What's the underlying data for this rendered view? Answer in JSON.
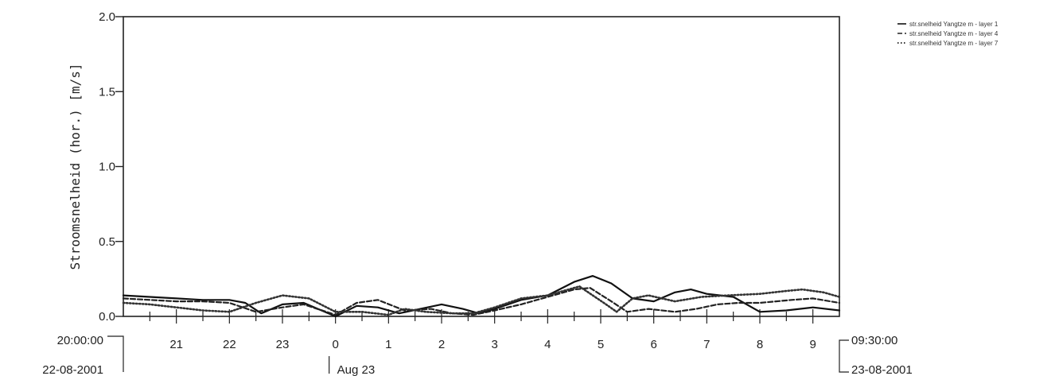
{
  "chart_data": {
    "type": "line",
    "ylabel": "Stroomsnelheid (hor.) [m/s]",
    "ylim": [
      0.0,
      2.0
    ],
    "y_ticks": [
      {
        "value": 0.0,
        "label": "0.0"
      },
      {
        "value": 0.5,
        "label": "0.5"
      },
      {
        "value": 1.0,
        "label": "1.0"
      },
      {
        "value": 1.5,
        "label": "1.5"
      },
      {
        "value": 2.0,
        "label": "2.0"
      }
    ],
    "xlim": [
      20.0,
      33.5
    ],
    "x_ticks": [
      {
        "value": 21,
        "label": "21"
      },
      {
        "value": 22,
        "label": "22"
      },
      {
        "value": 23,
        "label": "23"
      },
      {
        "value": 24,
        "label": "0"
      },
      {
        "value": 25,
        "label": "1"
      },
      {
        "value": 26,
        "label": "2"
      },
      {
        "value": 27,
        "label": "3"
      },
      {
        "value": 28,
        "label": "4"
      },
      {
        "value": 29,
        "label": "5"
      },
      {
        "value": 30,
        "label": "6"
      },
      {
        "value": 31,
        "label": "7"
      },
      {
        "value": 32,
        "label": "8"
      },
      {
        "value": 33,
        "label": "9"
      }
    ],
    "start_label_time": "20:00:00",
    "start_label_date": "22-08-2001",
    "end_label_time": "09:30:00",
    "end_label_date": "23-08-2001",
    "day_marker_label": "Aug 23",
    "legend_position": "top-right",
    "series": [
      {
        "name": "str.snelheid Yangtze m - layer 1",
        "style": "solid",
        "color": "#111111",
        "points": [
          [
            20.0,
            0.14
          ],
          [
            20.5,
            0.13
          ],
          [
            21.0,
            0.12
          ],
          [
            21.5,
            0.11
          ],
          [
            22.0,
            0.11
          ],
          [
            22.3,
            0.09
          ],
          [
            22.6,
            0.02
          ],
          [
            23.0,
            0.08
          ],
          [
            23.4,
            0.09
          ],
          [
            24.0,
            0.0
          ],
          [
            24.4,
            0.07
          ],
          [
            24.8,
            0.06
          ],
          [
            25.2,
            0.02
          ],
          [
            25.6,
            0.05
          ],
          [
            26.0,
            0.08
          ],
          [
            26.4,
            0.05
          ],
          [
            26.7,
            0.02
          ],
          [
            27.0,
            0.05
          ],
          [
            27.5,
            0.11
          ],
          [
            28.0,
            0.14
          ],
          [
            28.5,
            0.23
          ],
          [
            28.85,
            0.27
          ],
          [
            29.2,
            0.22
          ],
          [
            29.6,
            0.12
          ],
          [
            30.0,
            0.1
          ],
          [
            30.4,
            0.16
          ],
          [
            30.7,
            0.18
          ],
          [
            31.0,
            0.15
          ],
          [
            31.5,
            0.13
          ],
          [
            32.0,
            0.03
          ],
          [
            32.5,
            0.04
          ],
          [
            33.0,
            0.06
          ],
          [
            33.5,
            0.04
          ]
        ]
      },
      {
        "name": "str.snelheid Yangtze m - layer 4",
        "style": "dashed",
        "color": "#222222",
        "points": [
          [
            20.0,
            0.12
          ],
          [
            20.5,
            0.11
          ],
          [
            21.0,
            0.1
          ],
          [
            21.5,
            0.1
          ],
          [
            22.0,
            0.09
          ],
          [
            22.5,
            0.03
          ],
          [
            23.0,
            0.06
          ],
          [
            23.4,
            0.08
          ],
          [
            24.0,
            0.01
          ],
          [
            24.4,
            0.09
          ],
          [
            24.8,
            0.11
          ],
          [
            25.3,
            0.04
          ],
          [
            25.8,
            0.05
          ],
          [
            26.2,
            0.02
          ],
          [
            26.6,
            0.01
          ],
          [
            27.0,
            0.04
          ],
          [
            27.5,
            0.08
          ],
          [
            28.0,
            0.13
          ],
          [
            28.5,
            0.18
          ],
          [
            28.8,
            0.19
          ],
          [
            29.2,
            0.1
          ],
          [
            29.5,
            0.03
          ],
          [
            29.9,
            0.05
          ],
          [
            30.4,
            0.03
          ],
          [
            30.8,
            0.05
          ],
          [
            31.2,
            0.08
          ],
          [
            31.6,
            0.09
          ],
          [
            32.0,
            0.09
          ],
          [
            32.6,
            0.11
          ],
          [
            33.0,
            0.12
          ],
          [
            33.5,
            0.09
          ]
        ]
      },
      {
        "name": "str.snelheid Yangtze m - layer 7",
        "style": "dotted",
        "color": "#333333",
        "points": [
          [
            20.0,
            0.09
          ],
          [
            20.5,
            0.08
          ],
          [
            21.0,
            0.06
          ],
          [
            21.5,
            0.04
          ],
          [
            22.0,
            0.03
          ],
          [
            22.5,
            0.09
          ],
          [
            23.0,
            0.14
          ],
          [
            23.5,
            0.12
          ],
          [
            24.0,
            0.03
          ],
          [
            24.5,
            0.03
          ],
          [
            25.0,
            0.01
          ],
          [
            25.3,
            0.05
          ],
          [
            25.7,
            0.03
          ],
          [
            26.2,
            0.02
          ],
          [
            26.6,
            0.02
          ],
          [
            27.0,
            0.06
          ],
          [
            27.5,
            0.12
          ],
          [
            28.0,
            0.14
          ],
          [
            28.6,
            0.2
          ],
          [
            29.1,
            0.08
          ],
          [
            29.3,
            0.03
          ],
          [
            29.6,
            0.12
          ],
          [
            29.9,
            0.14
          ],
          [
            30.4,
            0.1
          ],
          [
            30.9,
            0.13
          ],
          [
            31.4,
            0.14
          ],
          [
            32.0,
            0.15
          ],
          [
            32.5,
            0.17
          ],
          [
            32.8,
            0.18
          ],
          [
            33.2,
            0.16
          ],
          [
            33.5,
            0.13
          ]
        ]
      }
    ]
  }
}
